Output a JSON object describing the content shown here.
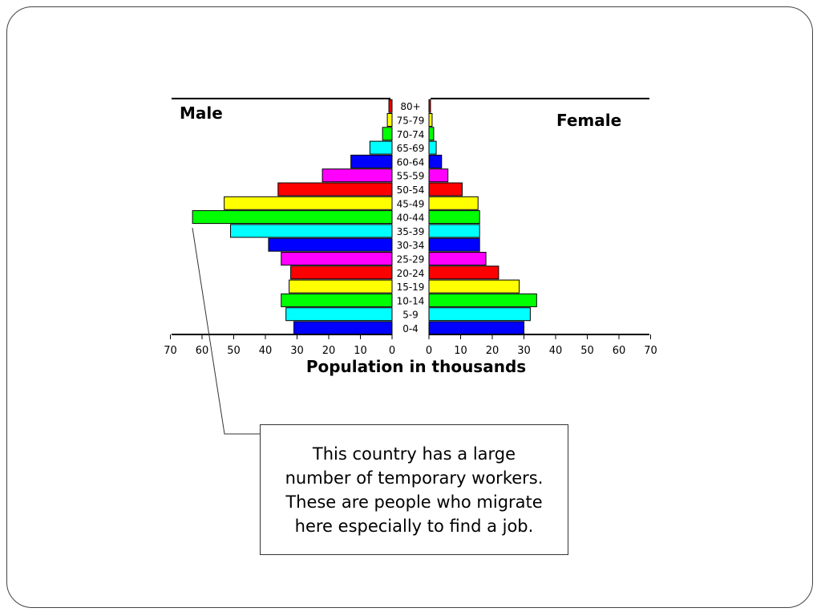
{
  "chart_data": {
    "type": "bar",
    "orientation": "horizontal-population-pyramid",
    "categories": [
      "0-4",
      "5-9",
      "10-14",
      "15-19",
      "20-24",
      "25-29",
      "30-34",
      "35-39",
      "40-44",
      "45-49",
      "50-54",
      "55-59",
      "60-64",
      "65-69",
      "70-74",
      "75-79",
      "80+"
    ],
    "series": [
      {
        "name": "Male",
        "color": "left",
        "values": [
          31,
          33.5,
          35,
          32.5,
          32,
          35,
          39,
          51,
          63,
          53,
          36,
          22,
          13,
          7,
          3,
          1.5,
          1
        ]
      },
      {
        "name": "Female",
        "color": "right",
        "values": [
          30,
          32,
          34,
          28.5,
          22,
          18,
          16,
          16,
          16,
          15.5,
          10.5,
          6,
          4,
          2.3,
          1.5,
          1,
          0.5
        ]
      }
    ],
    "band_colors": [
      "#0000ff",
      "#00ffff",
      "#00ff00",
      "#ffff00",
      "#ff0000",
      "#ff00ff",
      "#0000ff",
      "#00ffff",
      "#00ff00",
      "#ffff00",
      "#ff0000",
      "#ff00ff",
      "#0000ff",
      "#00ffff",
      "#00ff00",
      "#ffff00",
      "#ff0000"
    ],
    "xticks": [
      0,
      10,
      20,
      30,
      40,
      50,
      60,
      70
    ],
    "xlim": [
      0,
      70
    ],
    "xlabel": "Population in thousands",
    "left_label": "Male",
    "right_label": "Female",
    "title": "",
    "grid": false
  },
  "callout": {
    "text": "This country has a large number of temporary workers.  These are people who migrate here especially to find a job."
  }
}
